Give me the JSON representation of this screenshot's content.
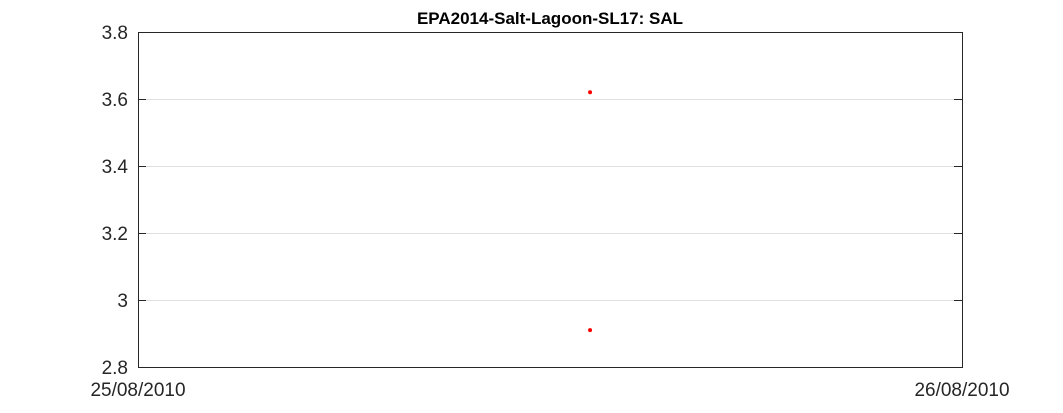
{
  "chart_data": {
    "type": "scatter",
    "title": "EPA2014-Salt-Lagoon-SL17: SAL",
    "xlabel": "",
    "ylabel": "",
    "x_range": [
      "25/08/2010",
      "26/08/2010"
    ],
    "x_ticks": [
      "25/08/2010",
      "26/08/2010"
    ],
    "ylim": [
      2.8,
      3.8
    ],
    "y_ticks": [
      "2.8",
      "3",
      "3.2",
      "3.4",
      "3.6",
      "3.8"
    ],
    "y_tick_values": [
      2.8,
      3.0,
      3.2,
      3.4,
      3.6,
      3.8
    ],
    "grid": "horizontal",
    "points": [
      {
        "x": "25/08/2010 13:10",
        "y": 3.62
      },
      {
        "x": "25/08/2010 13:10",
        "y": 2.91
      }
    ],
    "colors": {
      "marker": "#ff0000",
      "axes": "#262626",
      "grid": "#dfdfdf",
      "background": "#ffffff"
    }
  }
}
